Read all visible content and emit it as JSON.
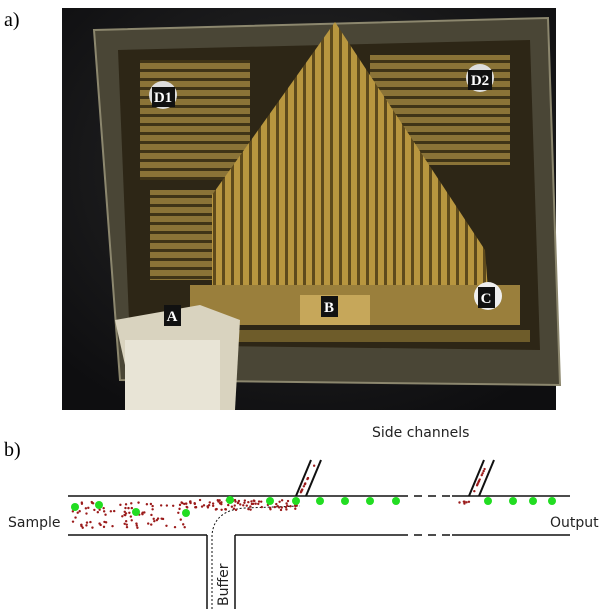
{
  "panels": [
    {
      "label": "a)",
      "markers": [
        "D1",
        "D2",
        "A",
        "B",
        "C"
      ]
    },
    {
      "label": "b)",
      "annotations": {
        "side_channels": "Side channels",
        "sample": "Sample",
        "output": "Output",
        "buffer": "Buffer"
      }
    }
  ]
}
